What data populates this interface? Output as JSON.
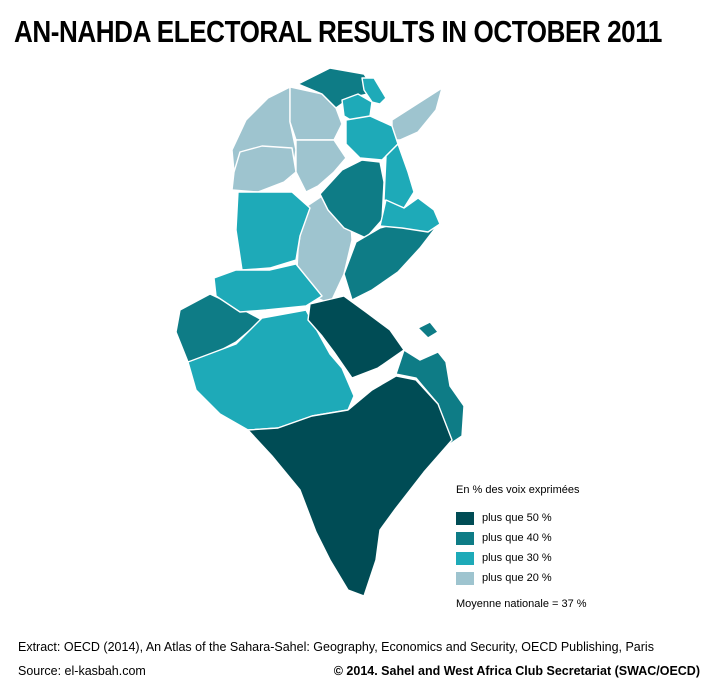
{
  "title": "AN-NAHDA ELECTORAL RESULTS IN OCTOBER 2011",
  "colors": {
    "plus_50": "#004c55",
    "plus_40": "#0e7c86",
    "plus_30": "#1eaab8",
    "plus_20": "#9ec4cf",
    "border": "#ffffff"
  },
  "legend": {
    "title": "En % des voix exprimées",
    "items": [
      {
        "label": "plus que 50 %",
        "color": "#004c55"
      },
      {
        "label": "plus que 40 %",
        "color": "#0e7c86"
      },
      {
        "label": "plus que 30 %",
        "color": "#1eaab8"
      },
      {
        "label": "plus que 20 %",
        "color": "#9ec4cf"
      }
    ],
    "note": "Moyenne nationale = 37 %"
  },
  "footer": {
    "extract": "Extract: OECD (2014), An Atlas of the Sahara-Sahel: Geography, Economics  and Security, OECD Publishing, Paris",
    "source": "Source: el-kasbah.com",
    "copyright": "© 2014. Sahel and West Africa Club Secretariat (SWAC/OECD)"
  }
}
